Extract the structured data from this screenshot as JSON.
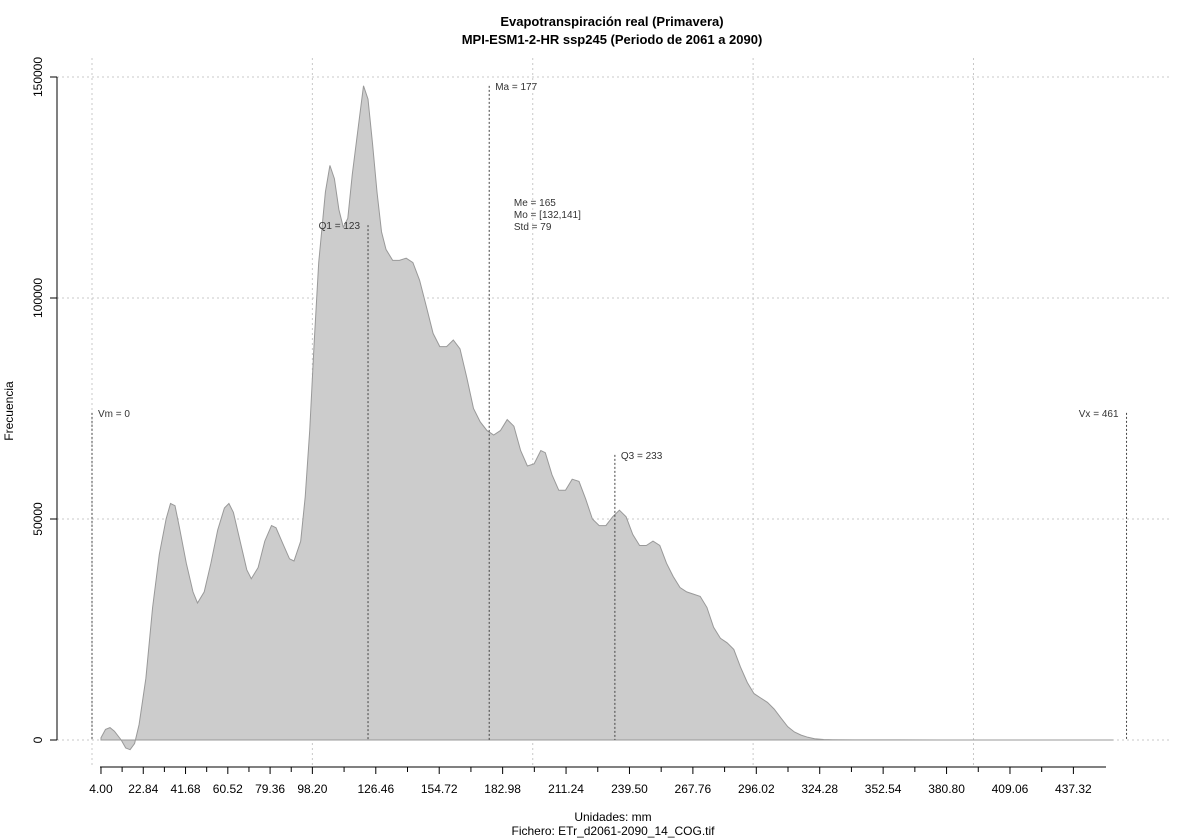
{
  "chart_data": {
    "type": "area",
    "title": "Evapotranspiración real (Primavera)",
    "subtitle": "MPI-ESM1-2-HR ssp245 (Periodo de 2061 a 2090)",
    "xlabel": "Unidades: mm",
    "ylabel": "Frecuencia",
    "caption": "Fichero: ETr_d2061-2090_14_COG.tif",
    "xlim": [
      0,
      467
    ],
    "ylim": [
      0,
      150000
    ],
    "grid": true,
    "fill_color": "#cccccc",
    "line_color": "#999999",
    "x_ticks": [
      "4.00",
      "22.84",
      "41.68",
      "60.52",
      "79.36",
      "98.20",
      "126.46",
      "154.72",
      "182.98",
      "211.24",
      "239.50",
      "267.76",
      "296.02",
      "324.28",
      "352.54",
      "380.80",
      "409.06",
      "437.32"
    ],
    "y_ticks": [
      "0",
      "50000",
      "100000",
      "150000"
    ],
    "x_grid": [
      0,
      98.2,
      196.4,
      294.6,
      392.8
    ],
    "y_grid": [
      0,
      50000,
      100000,
      150000
    ],
    "points": [
      [
        4,
        500
      ],
      [
        6,
        2400
      ],
      [
        8,
        2800
      ],
      [
        10,
        2000
      ],
      [
        13,
        0
      ],
      [
        15,
        -1800
      ],
      [
        17,
        -2200
      ],
      [
        19,
        -800
      ],
      [
        21,
        3500
      ],
      [
        24,
        14000
      ],
      [
        27,
        30000
      ],
      [
        30,
        42000
      ],
      [
        33,
        50000
      ],
      [
        35,
        53500
      ],
      [
        37,
        53000
      ],
      [
        39,
        48000
      ],
      [
        42,
        40000
      ],
      [
        45,
        33500
      ],
      [
        47,
        31000
      ],
      [
        50,
        33500
      ],
      [
        53,
        40000
      ],
      [
        56,
        47500
      ],
      [
        59,
        52500
      ],
      [
        61,
        53500
      ],
      [
        63,
        51500
      ],
      [
        66,
        45000
      ],
      [
        69,
        38500
      ],
      [
        71,
        36500
      ],
      [
        74,
        39000
      ],
      [
        77,
        45000
      ],
      [
        80,
        48500
      ],
      [
        82,
        48000
      ],
      [
        85,
        44500
      ],
      [
        88,
        41000
      ],
      [
        90,
        40500
      ],
      [
        93,
        45000
      ],
      [
        95,
        55000
      ],
      [
        97,
        70000
      ],
      [
        99,
        90000
      ],
      [
        101,
        108000
      ],
      [
        104,
        124000
      ],
      [
        106,
        130000
      ],
      [
        108,
        127000
      ],
      [
        110,
        120000
      ],
      [
        112,
        116000
      ],
      [
        114,
        118000
      ],
      [
        116,
        128000
      ],
      [
        119,
        140000
      ],
      [
        121,
        148000
      ],
      [
        123,
        145000
      ],
      [
        125,
        135000
      ],
      [
        127,
        124000
      ],
      [
        129,
        115000
      ],
      [
        131,
        111000
      ],
      [
        134,
        108500
      ],
      [
        137,
        108500
      ],
      [
        140,
        109000
      ],
      [
        143,
        108000
      ],
      [
        146,
        104000
      ],
      [
        149,
        98000
      ],
      [
        152,
        92000
      ],
      [
        155,
        89000
      ],
      [
        158,
        89000
      ],
      [
        161,
        90500
      ],
      [
        164,
        88500
      ],
      [
        167,
        82000
      ],
      [
        170,
        75000
      ],
      [
        173,
        72000
      ],
      [
        176,
        70000
      ],
      [
        179,
        69000
      ],
      [
        182,
        70000
      ],
      [
        185,
        72500
      ],
      [
        188,
        71000
      ],
      [
        191,
        65500
      ],
      [
        194,
        62000
      ],
      [
        197,
        62500
      ],
      [
        200,
        65500
      ],
      [
        202,
        65000
      ],
      [
        205,
        60000
      ],
      [
        208,
        56500
      ],
      [
        211,
        56500
      ],
      [
        214,
        59000
      ],
      [
        217,
        58500
      ],
      [
        220,
        54500
      ],
      [
        223,
        50000
      ],
      [
        226,
        48500
      ],
      [
        229,
        48500
      ],
      [
        232,
        50500
      ],
      [
        235,
        52000
      ],
      [
        238,
        50500
      ],
      [
        241,
        46500
      ],
      [
        244,
        44000
      ],
      [
        247,
        44000
      ],
      [
        250,
        45000
      ],
      [
        253,
        44000
      ],
      [
        256,
        40000
      ],
      [
        259,
        37000
      ],
      [
        262,
        34500
      ],
      [
        265,
        33500
      ],
      [
        268,
        33000
      ],
      [
        271,
        32500
      ],
      [
        274,
        30000
      ],
      [
        277,
        25500
      ],
      [
        280,
        23000
      ],
      [
        283,
        22000
      ],
      [
        286,
        20500
      ],
      [
        289,
        16500
      ],
      [
        292,
        13000
      ],
      [
        295,
        10500
      ],
      [
        298,
        9500
      ],
      [
        301,
        8500
      ],
      [
        304,
        7000
      ],
      [
        307,
        5000
      ],
      [
        310,
        3000
      ],
      [
        313,
        1800
      ],
      [
        316,
        1100
      ],
      [
        319,
        600
      ],
      [
        322,
        300
      ],
      [
        326,
        120
      ],
      [
        330,
        60
      ],
      [
        340,
        30
      ],
      [
        360,
        15
      ],
      [
        380,
        8
      ],
      [
        400,
        3
      ],
      [
        418,
        0
      ]
    ],
    "vlines": [
      {
        "label": "Vm = 0",
        "x": 0,
        "y_top": 74000,
        "anchor": "start"
      },
      {
        "label": "Q1 = 123",
        "x": 123,
        "y_top": 116500,
        "anchor": "end"
      },
      {
        "label": "Ma = 177",
        "x": 177,
        "y_top": 148000,
        "anchor": "start"
      },
      {
        "label": "Q3 = 233",
        "x": 233,
        "y_top": 64500,
        "anchor": "start"
      },
      {
        "label": "Vx = 461",
        "x": 461,
        "y_top": 74000,
        "anchor": "end"
      }
    ],
    "stats": {
      "x": 188,
      "lines": [
        "Me = 165",
        "Mo = [132,141]",
        "Std = 79"
      ]
    }
  }
}
